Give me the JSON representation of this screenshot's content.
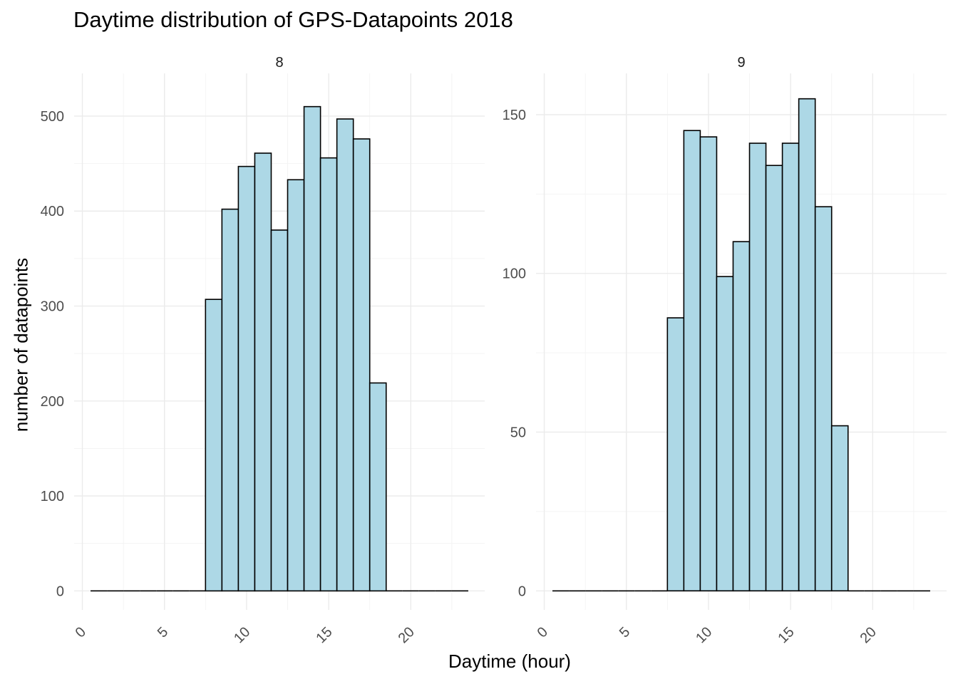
{
  "chart_data": {
    "type": "bar",
    "title": "Daytime distribution of GPS-Datapoints 2018",
    "xlabel": "Daytime (hour)",
    "ylabel": "number of datapoints",
    "grid": true,
    "x_ticks": [
      "0",
      "5",
      "10",
      "15",
      "20"
    ],
    "xlim": [
      -0.5,
      24.5
    ],
    "categories": [
      1,
      2,
      3,
      4,
      5,
      6,
      7,
      8,
      9,
      10,
      11,
      12,
      13,
      14,
      15,
      16,
      17,
      18,
      19,
      20,
      21,
      22,
      23
    ],
    "facets": [
      {
        "label": "8",
        "ylim": [
          -20,
          545
        ],
        "y_ticks": [
          "0",
          "100",
          "200",
          "300",
          "400",
          "500"
        ],
        "values": [
          0,
          0,
          0,
          0,
          0,
          0,
          0,
          307,
          402,
          447,
          461,
          380,
          433,
          510,
          456,
          497,
          476,
          219,
          0,
          0,
          0,
          0,
          0
        ]
      },
      {
        "label": "9",
        "ylim": [
          -6,
          163
        ],
        "y_ticks": [
          "0",
          "50",
          "100",
          "150"
        ],
        "values": [
          0,
          0,
          0,
          0,
          0,
          0,
          0,
          86,
          145,
          143,
          99,
          110,
          141,
          134,
          141,
          155,
          121,
          52,
          0,
          0,
          0,
          0,
          0
        ]
      }
    ]
  }
}
